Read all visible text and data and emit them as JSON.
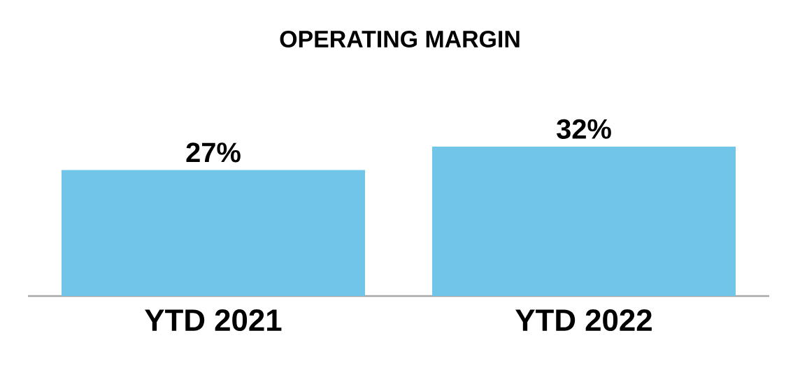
{
  "chart_data": {
    "type": "bar",
    "title": "OPERATING MARGIN",
    "categories": [
      "YTD 2021",
      "YTD 2022"
    ],
    "values": [
      27,
      32
    ],
    "value_labels": [
      "27%",
      "32%"
    ],
    "color": "#70c5e8"
  }
}
